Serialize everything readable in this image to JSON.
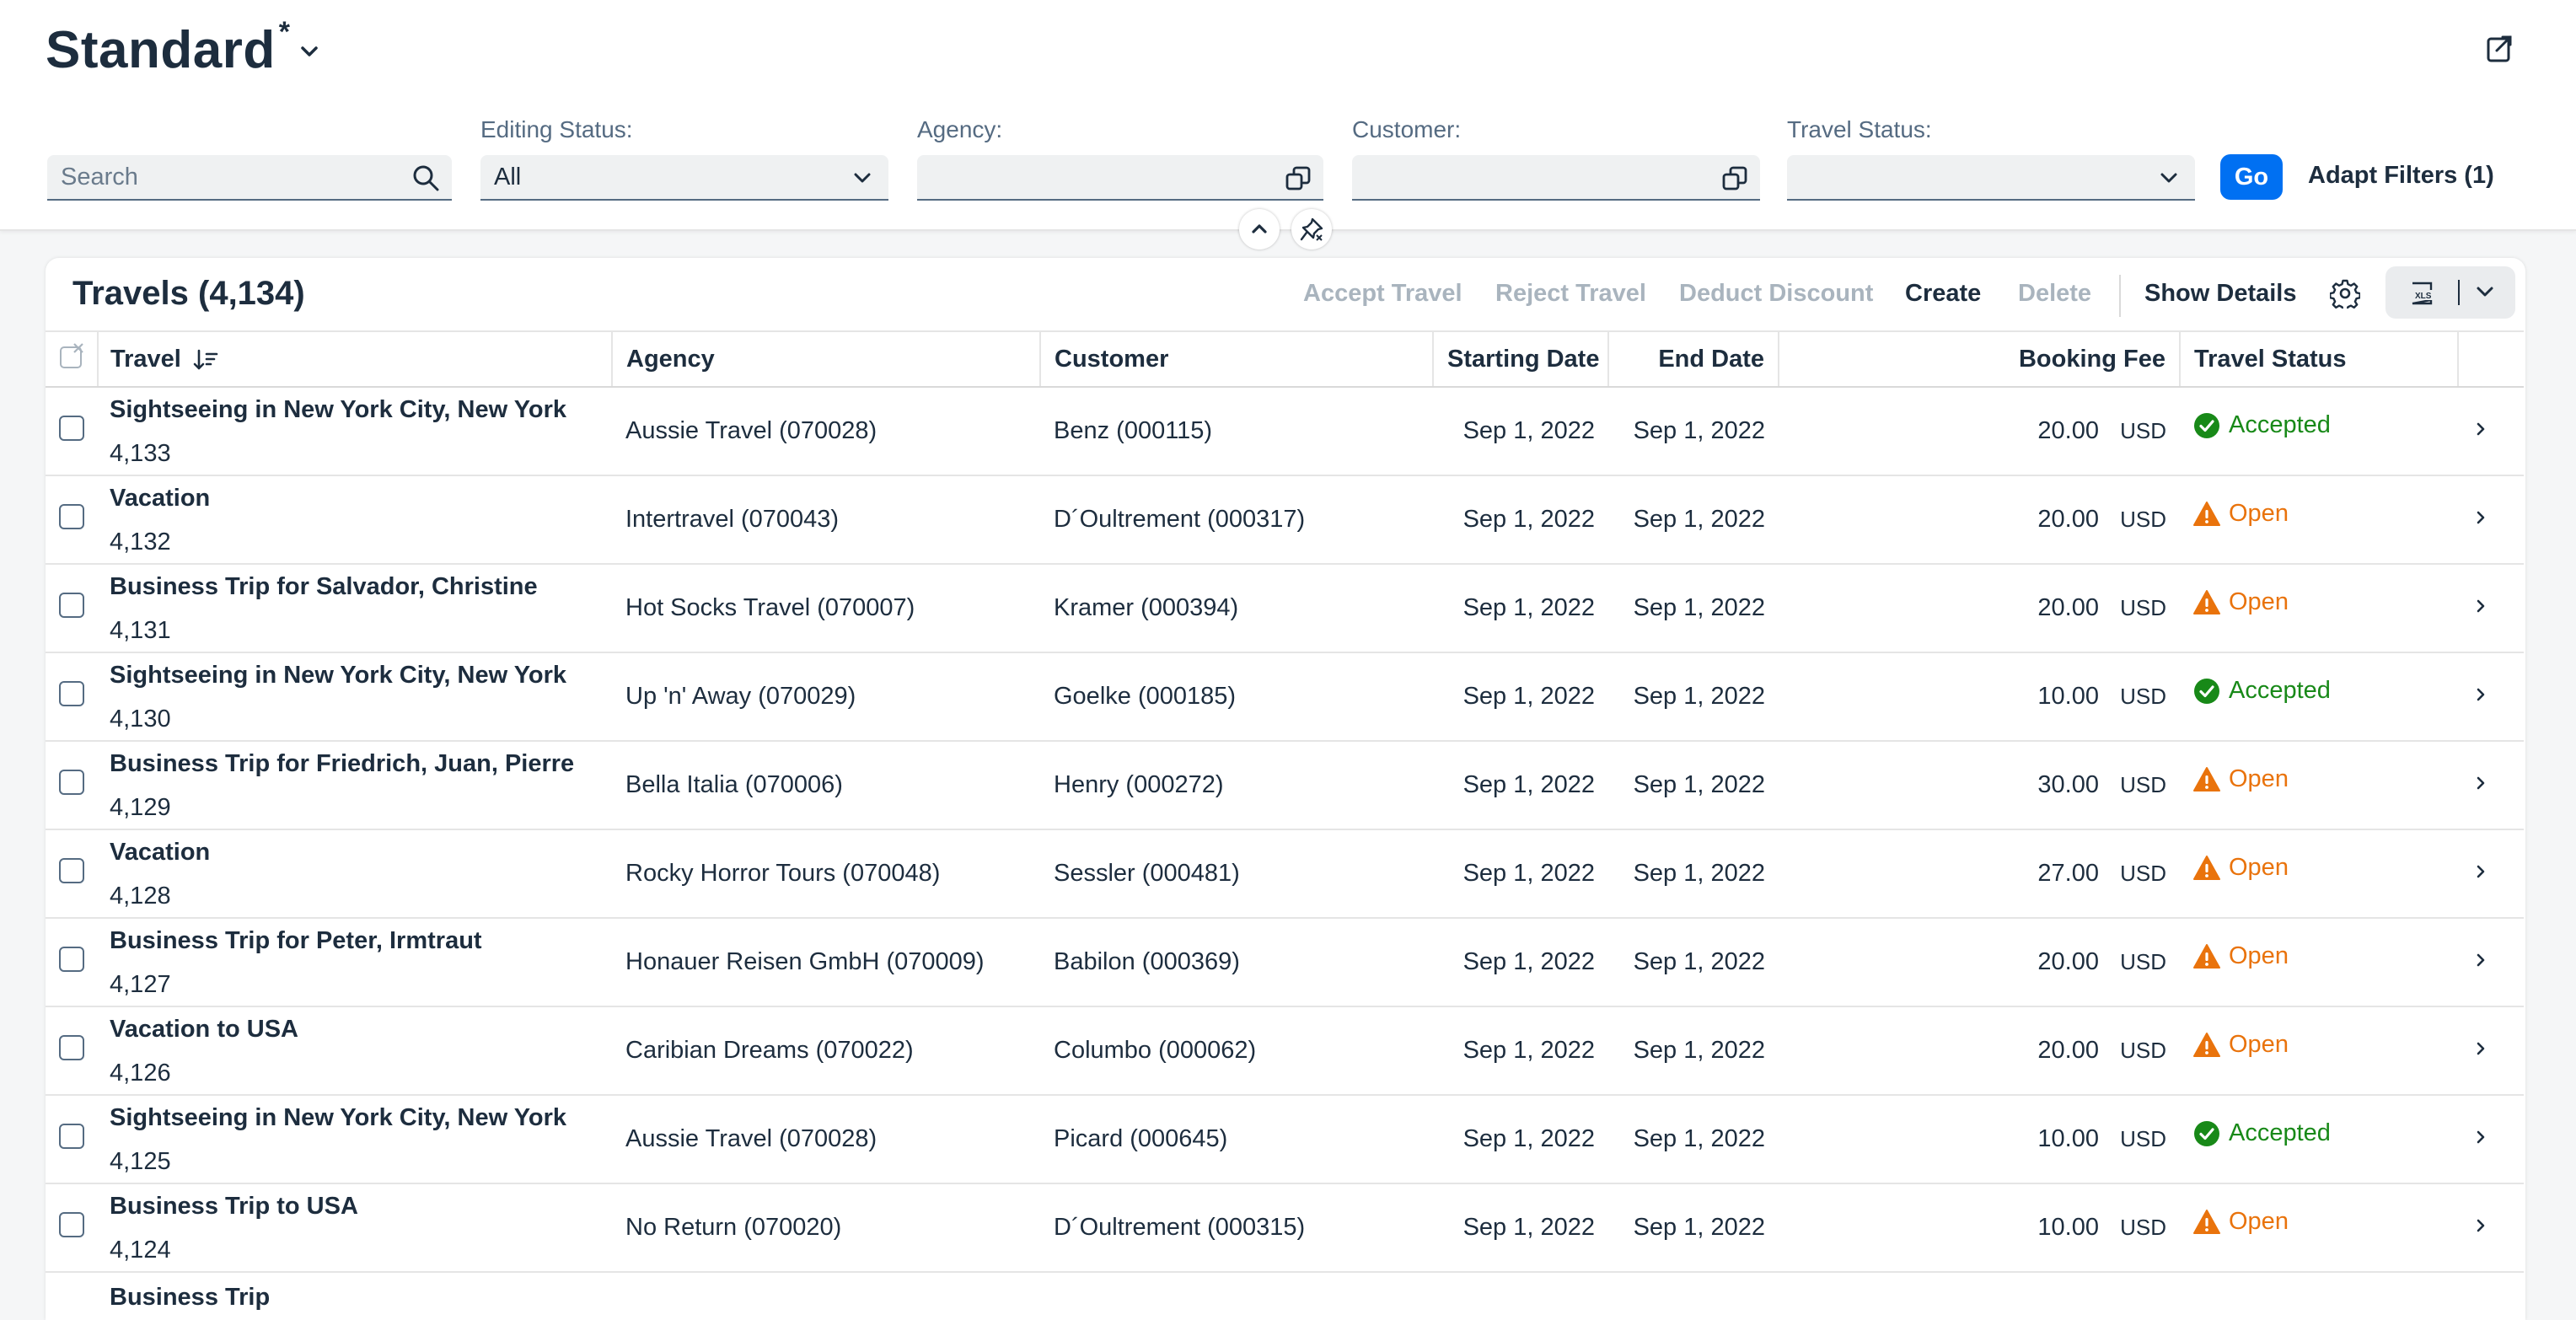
{
  "header": {
    "variant_title": "Standard",
    "variant_modified": "*",
    "filters": {
      "search_placeholder": "Search",
      "editing_status_label": "Editing Status:",
      "editing_status_value": "All",
      "agency_label": "Agency:",
      "agency_value": "",
      "customer_label": "Customer:",
      "customer_value": "",
      "travel_status_label": "Travel Status:",
      "travel_status_value": ""
    },
    "go_label": "Go",
    "adapt_filters_label": "Adapt Filters (1)"
  },
  "table": {
    "title": "Travels (4,134)",
    "actions": {
      "accept": "Accept Travel",
      "reject": "Reject Travel",
      "deduct": "Deduct Discount",
      "create": "Create",
      "delete": "Delete",
      "show_details": "Show Details"
    },
    "columns": {
      "travel": "Travel",
      "agency": "Agency",
      "customer": "Customer",
      "starting_date": "Starting Date",
      "end_date": "End Date",
      "booking_fee": "Booking Fee",
      "travel_status": "Travel Status"
    },
    "rows": [
      {
        "name": "Sightseeing in New York City, New York",
        "id": "4,133",
        "agency": "Aussie Travel (070028)",
        "customer": "Benz (000115)",
        "start": "Sep 1, 2022",
        "end": "Sep 1, 2022",
        "fee": "20.00",
        "currency": "USD",
        "status": "Accepted"
      },
      {
        "name": "Vacation",
        "id": "4,132",
        "agency": "Intertravel (070043)",
        "customer": "D´Oultrement (000317)",
        "start": "Sep 1, 2022",
        "end": "Sep 1, 2022",
        "fee": "20.00",
        "currency": "USD",
        "status": "Open"
      },
      {
        "name": "Business Trip for Salvador, Christine",
        "id": "4,131",
        "agency": "Hot Socks Travel (070007)",
        "customer": "Kramer (000394)",
        "start": "Sep 1, 2022",
        "end": "Sep 1, 2022",
        "fee": "20.00",
        "currency": "USD",
        "status": "Open"
      },
      {
        "name": "Sightseeing in New York City, New York",
        "id": "4,130",
        "agency": "Up 'n' Away (070029)",
        "customer": "Goelke (000185)",
        "start": "Sep 1, 2022",
        "end": "Sep 1, 2022",
        "fee": "10.00",
        "currency": "USD",
        "status": "Accepted"
      },
      {
        "name": "Business Trip for Friedrich, Juan, Pierre",
        "id": "4,129",
        "agency": "Bella Italia (070006)",
        "customer": "Henry (000272)",
        "start": "Sep 1, 2022",
        "end": "Sep 1, 2022",
        "fee": "30.00",
        "currency": "USD",
        "status": "Open"
      },
      {
        "name": "Vacation",
        "id": "4,128",
        "agency": "Rocky Horror Tours (070048)",
        "customer": "Sessler (000481)",
        "start": "Sep 1, 2022",
        "end": "Sep 1, 2022",
        "fee": "27.00",
        "currency": "USD",
        "status": "Open"
      },
      {
        "name": "Business Trip for Peter, Irmtraut",
        "id": "4,127",
        "agency": "Honauer Reisen GmbH (070009)",
        "customer": "Babilon (000369)",
        "start": "Sep 1, 2022",
        "end": "Sep 1, 2022",
        "fee": "20.00",
        "currency": "USD",
        "status": "Open"
      },
      {
        "name": "Vacation to USA",
        "id": "4,126",
        "agency": "Caribian Dreams (070022)",
        "customer": "Columbo (000062)",
        "start": "Sep 1, 2022",
        "end": "Sep 1, 2022",
        "fee": "20.00",
        "currency": "USD",
        "status": "Open"
      },
      {
        "name": "Sightseeing in New York City, New York",
        "id": "4,125",
        "agency": "Aussie Travel (070028)",
        "customer": "Picard (000645)",
        "start": "Sep 1, 2022",
        "end": "Sep 1, 2022",
        "fee": "10.00",
        "currency": "USD",
        "status": "Accepted"
      },
      {
        "name": "Business Trip to USA",
        "id": "4,124",
        "agency": "No Return (070020)",
        "customer": "D´Oultrement (000315)",
        "start": "Sep 1, 2022",
        "end": "Sep 1, 2022",
        "fee": "10.00",
        "currency": "USD",
        "status": "Open"
      },
      {
        "name": "Business Trip",
        "id": "",
        "agency": "",
        "customer": "",
        "start": "",
        "end": "",
        "fee": "",
        "currency": "",
        "status": ""
      }
    ]
  },
  "colors": {
    "brand": "#0070f2",
    "text": "#1d2d3e",
    "accepted": "#188918",
    "open": "#e9730c",
    "disabled": "#a9b4be"
  },
  "icons": {
    "variant": "chevron-down-icon",
    "share": "share-icon",
    "search": "search-icon",
    "value_help": "value-help-icon",
    "collapse": "chevron-up-icon",
    "pin": "pin-icon",
    "sort": "sort-descending-icon",
    "settings": "gear-icon",
    "export": "excel-export-icon",
    "accepted": "success-icon",
    "open": "warning-icon",
    "navigate": "chevron-right-icon"
  }
}
